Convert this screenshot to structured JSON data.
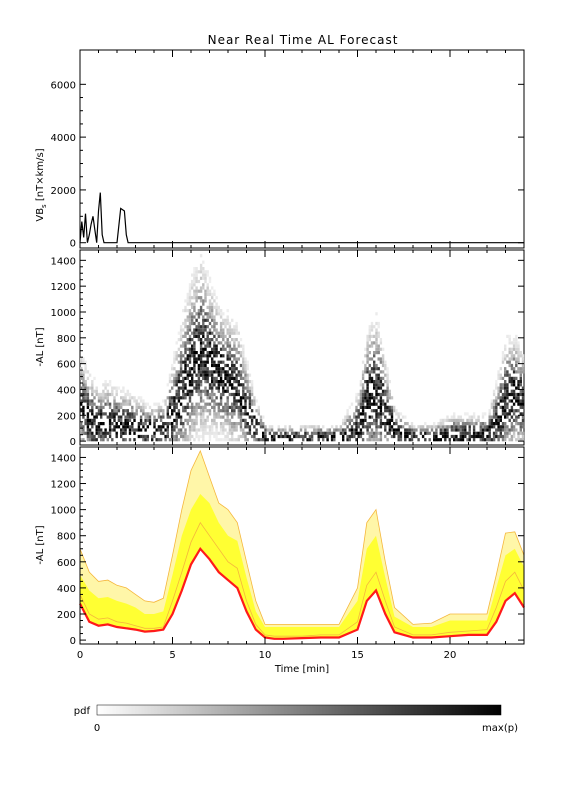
{
  "title": "Near Real Time AL Forecast",
  "colors": {
    "axis": "#000000",
    "line": "#000000",
    "pdf_max": "#000000",
    "pdf_min": "#ffffff",
    "band_outer": "#fff6a8",
    "band_inner": "#ffff33",
    "band_edges": "#f5b63c",
    "median": "#ff1a1a"
  },
  "colorbar": {
    "label": "pdf",
    "min_label": "0",
    "max_label": "max(p)"
  },
  "chart_data": [
    {
      "type": "line",
      "panel": "vbs",
      "ylabel": "VB_s [nT×km/s]",
      "ylabel_main": "VB",
      "ylabel_sub": "s",
      "ylabel_rest": " [nT×km/s]",
      "xlim": [
        0,
        24
      ],
      "ylim": [
        -200,
        7300
      ],
      "yticks": [
        0,
        2000,
        4000,
        6000
      ],
      "ytick_labels": [
        "0",
        "2000",
        "4000",
        "6000"
      ],
      "series": [
        {
          "x": [
            0,
            0.1,
            0.2,
            0.3,
            0.4,
            0.5,
            0.6,
            0.7,
            0.8,
            0.9,
            1.0,
            1.1,
            1.2,
            1.3,
            1.4,
            1.5,
            1.6,
            1.7,
            1.8,
            2.0,
            2.2,
            2.4,
            2.5,
            2.6,
            2.7,
            2.8,
            3.0,
            3.2,
            3.4,
            3.6,
            3.8,
            3.9,
            4.0,
            4.1,
            4.3,
            4.5,
            4.7,
            4.9,
            5.0,
            5.1,
            5.2,
            5.3,
            5.4,
            5.5,
            5.6,
            5.7,
            5.8,
            5.9,
            6.0,
            6.1,
            6.2,
            6.3,
            6.4,
            6.5,
            6.6,
            6.7,
            6.8,
            6.9,
            7.0,
            7.1,
            7.2,
            7.3,
            7.4,
            7.5,
            7.6,
            7.7,
            7.8,
            7.9,
            8.0,
            8.1,
            8.2,
            8.3,
            8.4,
            8.6,
            8.7,
            8.8,
            8.9,
            9.0,
            9.5,
            10,
            11,
            12,
            12.5,
            12.6,
            12.7,
            13,
            13.5,
            13.6,
            13.7,
            14,
            15,
            15.2,
            15.3,
            15.4,
            15.5,
            15.6,
            15.7,
            15.8,
            15.9,
            16.0,
            16.1,
            16.2,
            16.3,
            16.4,
            17,
            18,
            18.5,
            18.7,
            18.8,
            18.9,
            19.2,
            19.3,
            19.4,
            20,
            21,
            22.0,
            22.1,
            22.2,
            22.3,
            22.4,
            22.5,
            22.6,
            22.7,
            22.8,
            22.9,
            23.0,
            23.1,
            23.2,
            23.3,
            23.4,
            23.5,
            23.6,
            23.7,
            23.8,
            23.9,
            24.0
          ],
          "y": [
            0,
            800,
            200,
            1100,
            0,
            300,
            700,
            1000,
            500,
            0,
            1200,
            1900,
            300,
            0,
            0,
            0,
            0,
            0,
            0,
            0,
            1300,
            1200,
            300,
            0,
            0,
            0,
            0,
            0,
            0,
            0,
            0,
            0,
            0,
            0,
            0,
            0,
            0,
            0,
            0,
            0,
            0,
            0,
            0,
            0,
            0,
            0,
            0,
            0,
            0,
            0,
            0,
            0,
            0,
            0,
            0,
            0,
            0,
            0,
            0,
            0,
            0,
            0,
            0,
            0,
            0,
            0,
            0,
            0,
            0,
            0,
            0,
            0,
            0,
            0,
            0,
            0,
            0,
            0,
            0,
            0,
            0,
            0,
            0,
            0,
            0,
            0,
            0,
            0,
            0,
            0,
            0,
            0,
            0,
            0,
            0,
            0,
            0,
            0,
            0,
            0,
            0,
            0,
            0,
            0,
            0,
            0,
            0,
            0,
            0,
            0,
            0,
            0,
            0,
            0,
            0,
            0,
            0,
            0,
            0,
            0,
            0,
            0,
            0,
            0,
            0,
            0,
            0,
            0,
            0,
            0,
            0,
            0,
            0,
            0,
            0,
            0
          ]
        }
      ]
    },
    {
      "type": "heatmap",
      "panel": "pdf",
      "ylabel": "-AL [nT]",
      "xlim": [
        0,
        24
      ],
      "ylim": [
        -30,
        1480
      ],
      "yticks": [
        0,
        200,
        400,
        600,
        800,
        1000,
        1200,
        1400
      ],
      "ytick_labels": [
        "0",
        "200",
        "400",
        "600",
        "800",
        "1000",
        "1200",
        "1400"
      ]
    },
    {
      "type": "area",
      "panel": "forecast",
      "ylabel": "-AL [nT]",
      "xlabel": "Time [min]",
      "xlim": [
        0,
        24
      ],
      "ylim": [
        -30,
        1480
      ],
      "xticks": [
        0,
        5,
        10,
        15,
        20
      ],
      "xtick_labels": [
        "0",
        "5",
        "10",
        "15",
        "20"
      ],
      "yticks": [
        0,
        200,
        400,
        600,
        800,
        1000,
        1200,
        1400
      ],
      "ytick_labels": [
        "0",
        "200",
        "400",
        "600",
        "800",
        "1000",
        "1200",
        "1400"
      ],
      "x": [
        0,
        0.5,
        1,
        1.5,
        2,
        2.5,
        3,
        3.5,
        4,
        4.5,
        5,
        5.5,
        6,
        6.5,
        7,
        7.5,
        8,
        8.5,
        9,
        9.5,
        10,
        10.5,
        11,
        12,
        13,
        14,
        15,
        15.5,
        16,
        16.5,
        17,
        18,
        19,
        20,
        21,
        22,
        22.5,
        23,
        23.5,
        24
      ],
      "series": [
        {
          "name": "median",
          "values": [
            280,
            140,
            110,
            120,
            100,
            90,
            80,
            65,
            70,
            80,
            200,
            380,
            580,
            700,
            620,
            520,
            460,
            400,
            220,
            80,
            20,
            10,
            10,
            15,
            20,
            20,
            80,
            300,
            380,
            200,
            60,
            20,
            20,
            30,
            40,
            40,
            140,
            300,
            360,
            250
          ]
        },
        {
          "name": "band_low",
          "values": [
            350,
            200,
            160,
            170,
            140,
            130,
            110,
            90,
            90,
            100,
            300,
            520,
            750,
            900,
            800,
            700,
            600,
            550,
            300,
            120,
            40,
            30,
            30,
            30,
            40,
            40,
            140,
            420,
            520,
            300,
            100,
            40,
            40,
            60,
            70,
            80,
            250,
            450,
            520,
            380
          ]
        },
        {
          "name": "band_high",
          "values": [
            500,
            380,
            320,
            330,
            300,
            280,
            250,
            200,
            200,
            220,
            500,
            800,
            1000,
            1120,
            1050,
            900,
            800,
            760,
            480,
            220,
            100,
            100,
            100,
            100,
            100,
            100,
            300,
            700,
            800,
            480,
            180,
            100,
            100,
            150,
            150,
            150,
            400,
            650,
            700,
            560
          ]
        },
        {
          "name": "band_outer",
          "values": [
            700,
            520,
            450,
            460,
            420,
            400,
            350,
            300,
            290,
            320,
            650,
            1000,
            1300,
            1450,
            1250,
            1050,
            1000,
            900,
            600,
            300,
            120,
            120,
            120,
            120,
            120,
            120,
            400,
            900,
            1000,
            600,
            250,
            120,
            130,
            200,
            200,
            200,
            500,
            820,
            830,
            650
          ]
        }
      ]
    }
  ]
}
